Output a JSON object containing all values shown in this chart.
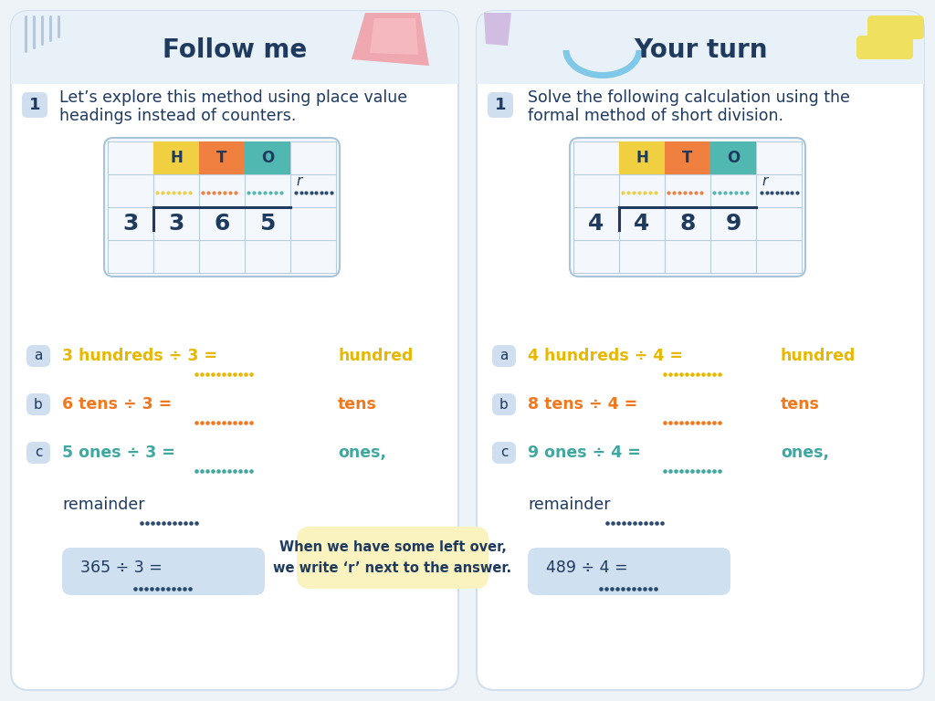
{
  "bg_color": "#eef3f8",
  "panel_color": "#ffffff",
  "left_title": "Follow me",
  "right_title": "Your turn",
  "title_color": "#1e3a5f",
  "title_fontsize": 20,
  "left_instruction_line1": "Let’s explore this method using place value",
  "left_instruction_line2": "headings instead of counters.",
  "right_instruction_line1": "Solve the following calculation using the",
  "right_instruction_line2": "formal method of short division.",
  "instruction_color": "#1e3a5f",
  "instruction_fontsize": 12.5,
  "badge_bg": "#cfdff0",
  "badge_text_color": "#1e3a5f",
  "H_color": "#f0d040",
  "T_color": "#f08040",
  "O_color": "#50b8b0",
  "header_text_color": "#1e3a5f",
  "left_divisor": "3",
  "left_digits": [
    "3",
    "6",
    "5"
  ],
  "right_divisor": "4",
  "right_digits": [
    "4",
    "8",
    "9"
  ],
  "digit_color": "#1e3a5f",
  "dot_colors_grid": [
    "#f0d040",
    "#f08040",
    "#50b8b0",
    "#2a4a6f"
  ],
  "r_color": "#1e3a5f",
  "left_qa": [
    {
      "label": "a",
      "text": "3 hundreds ÷ 3 =",
      "suffix": "hundred",
      "color": "#e8b800",
      "dot_color": "#e8b800"
    },
    {
      "label": "b",
      "text": "6 tens ÷ 3 =",
      "suffix": "tens",
      "color": "#f07820",
      "dot_color": "#f07820"
    },
    {
      "label": "c",
      "text": "5 ones ÷ 3 =",
      "suffix": "ones,",
      "color": "#40a8a0",
      "dot_color": "#40a8a0"
    }
  ],
  "left_remainder": "remainder",
  "left_final": "365 ÷ 3 =",
  "right_qa": [
    {
      "label": "a",
      "text": "4 hundreds ÷ 4 =",
      "suffix": "hundred",
      "color": "#e8b800",
      "dot_color": "#e8b800"
    },
    {
      "label": "b",
      "text": "8 tens ÷ 4 =",
      "suffix": "tens",
      "color": "#f07820",
      "dot_color": "#f07820"
    },
    {
      "label": "c",
      "text": "9 ones ÷ 4 =",
      "suffix": "ones,",
      "color": "#40a8a0",
      "dot_color": "#40a8a0"
    }
  ],
  "right_remainder": "remainder",
  "right_final": "489 ÷ 4 =",
  "tooltip_text": "When we have some left over,\nwe write ‘r’ next to the answer.",
  "tooltip_bg": "#faf3c0",
  "tooltip_text_color": "#1e3a5f"
}
